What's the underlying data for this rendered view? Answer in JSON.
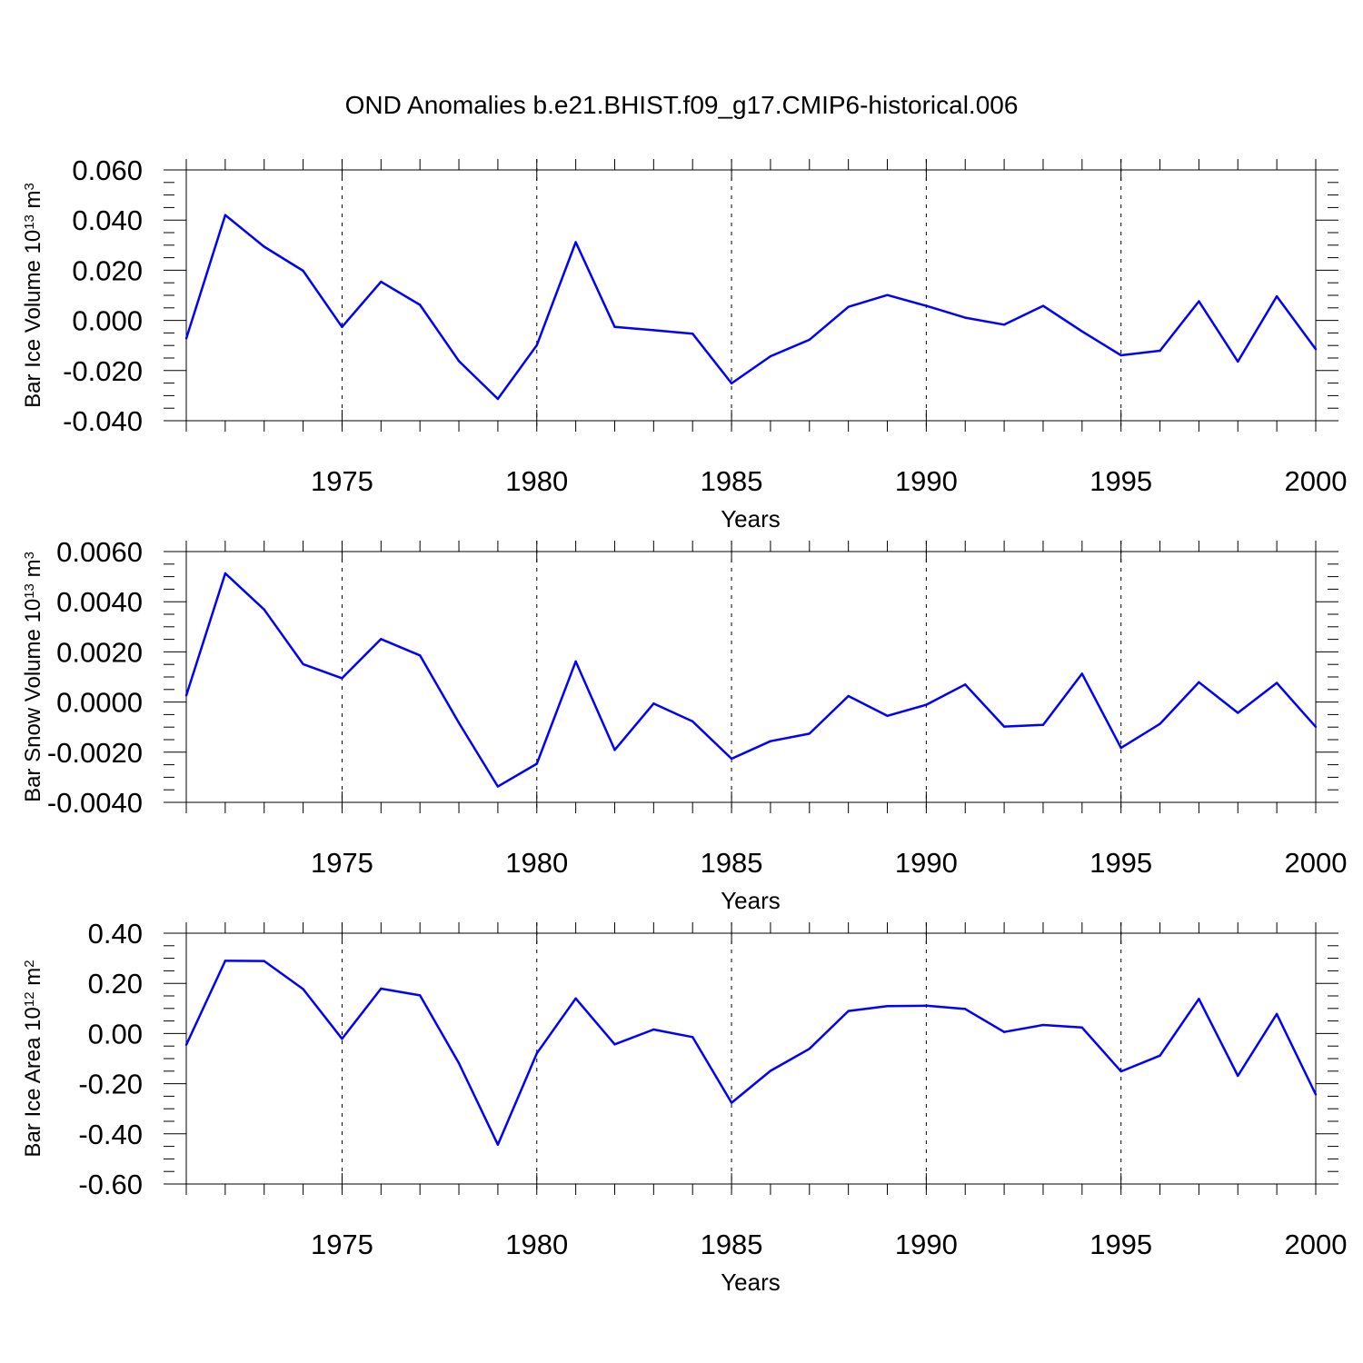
{
  "title": "OND Anomalies b.e21.BHIST.f09_g17.CMIP6-historical.006",
  "line_color": "#0000ff",
  "chart_data": [
    {
      "type": "line",
      "title": "",
      "xlabel": "Years",
      "ylabel": {
        "main": "Bar Ice Volume 10",
        "exp": "13",
        "unit": " m",
        "unit_exp": "3"
      },
      "xlim": [
        1971,
        2000
      ],
      "ylim": [
        -0.04,
        0.06
      ],
      "x_ticks": [
        "1975",
        "1980",
        "1985",
        "1990",
        "1995",
        "2000"
      ],
      "y_ticks": [
        "0.060",
        "0.040",
        "0.020",
        "0.000",
        "-0.020",
        "-0.040"
      ],
      "y_tick_values": [
        0.06,
        0.04,
        0.02,
        0.0,
        -0.02,
        -0.04
      ],
      "x": [
        1971,
        1972,
        1973,
        1974,
        1975,
        1976,
        1977,
        1978,
        1979,
        1980,
        1981,
        1982,
        1983,
        1984,
        1985,
        1986,
        1987,
        1988,
        1989,
        1990,
        1991,
        1992,
        1993,
        1994,
        1995,
        1996,
        1997,
        1998,
        1999,
        2000
      ],
      "values": [
        -0.0072,
        0.042,
        0.0294,
        0.0198,
        -0.0026,
        0.0154,
        0.0062,
        -0.0162,
        -0.0313,
        -0.0099,
        0.0312,
        -0.0026,
        -0.0039,
        -0.0053,
        -0.0251,
        -0.0143,
        -0.0077,
        0.0054,
        0.0101,
        0.0058,
        0.0011,
        -0.0017,
        0.0058,
        -0.0044,
        -0.0139,
        -0.0121,
        0.0076,
        -0.0164,
        0.0096,
        -0.0115
      ]
    },
    {
      "type": "line",
      "title": "",
      "xlabel": "Years",
      "ylabel": {
        "main": "Bar Snow Volume 10",
        "exp": "13",
        "unit": " m",
        "unit_exp": "3"
      },
      "xlim": [
        1971,
        2000
      ],
      "ylim": [
        -0.004,
        0.006
      ],
      "x_ticks": [
        "1975",
        "1980",
        "1985",
        "1990",
        "1995",
        "2000"
      ],
      "y_ticks": [
        "0.0060",
        "0.0040",
        "0.0020",
        "0.0000",
        "-0.0020",
        "-0.0040"
      ],
      "y_tick_values": [
        0.006,
        0.004,
        0.002,
        0.0,
        -0.002,
        -0.004
      ],
      "x": [
        1971,
        1972,
        1973,
        1974,
        1975,
        1976,
        1977,
        1978,
        1979,
        1980,
        1981,
        1982,
        1983,
        1984,
        1985,
        1986,
        1987,
        1988,
        1989,
        1990,
        1991,
        1992,
        1993,
        1994,
        1995,
        1996,
        1997,
        1998,
        1999,
        2000
      ],
      "values": [
        0.00026,
        0.00513,
        0.00369,
        0.00151,
        0.00095,
        0.00251,
        0.00186,
        -0.00083,
        -0.00337,
        -0.00246,
        0.00162,
        -0.00191,
        -6e-05,
        -0.00077,
        -0.00226,
        -0.00156,
        -0.00126,
        0.00024,
        -0.00055,
        -0.00011,
        0.0007,
        -0.00098,
        -0.00091,
        0.00113,
        -0.00183,
        -0.00087,
        0.00079,
        -0.00043,
        0.00076,
        -0.00099
      ]
    },
    {
      "type": "line",
      "title": "",
      "xlabel": "Years",
      "ylabel": {
        "main": "Bar Ice Area 10",
        "exp": "12",
        "unit": " m",
        "unit_exp": "2"
      },
      "xlim": [
        1971,
        2000
      ],
      "ylim": [
        -0.6,
        0.4
      ],
      "x_ticks": [
        "1975",
        "1980",
        "1985",
        "1990",
        "1995",
        "2000"
      ],
      "y_ticks": [
        "0.40",
        "0.20",
        "0.00",
        "-0.20",
        "-0.40",
        "-0.60"
      ],
      "y_tick_values": [
        0.4,
        0.2,
        0.0,
        -0.2,
        -0.4,
        -0.6
      ],
      "x": [
        1971,
        1972,
        1973,
        1974,
        1975,
        1976,
        1977,
        1978,
        1979,
        1980,
        1981,
        1982,
        1983,
        1984,
        1985,
        1986,
        1987,
        1988,
        1989,
        1990,
        1991,
        1992,
        1993,
        1994,
        1995,
        1996,
        1997,
        1998,
        1999,
        2000
      ],
      "values": [
        -0.045,
        0.29,
        0.289,
        0.177,
        -0.021,
        0.179,
        0.152,
        -0.118,
        -0.443,
        -0.079,
        0.14,
        -0.043,
        0.016,
        -0.014,
        -0.276,
        -0.149,
        -0.061,
        0.09,
        0.109,
        0.111,
        0.098,
        0.006,
        0.034,
        0.024,
        -0.151,
        -0.088,
        0.138,
        -0.169,
        0.078,
        -0.243
      ]
    }
  ]
}
